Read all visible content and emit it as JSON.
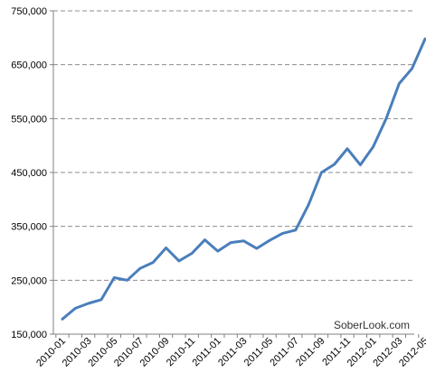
{
  "chart_data": {
    "type": "line",
    "title": "",
    "xlabel": "",
    "ylabel": "",
    "ylim": [
      150000,
      750000
    ],
    "y_ticks": [
      "150,000",
      "250,000",
      "350,000",
      "450,000",
      "550,000",
      "650,000",
      "750,000"
    ],
    "y_tick_values": [
      150000,
      250000,
      350000,
      450000,
      550000,
      650000,
      750000
    ],
    "x_tick_labels": [
      "2010-01",
      "2010-03",
      "2010-05",
      "2010-07",
      "2010-09",
      "2010-11",
      "2011-01",
      "2011-03",
      "2011-05",
      "2011-07",
      "2011-09",
      "2011-11",
      "2012-01",
      "2012-03",
      "2012-05"
    ],
    "grid": "horizontal dashed",
    "legend": "none",
    "series": [
      {
        "color": "#4A7EBB",
        "x": [
          "2010-01",
          "2010-02",
          "2010-03",
          "2010-04",
          "2010-05",
          "2010-06",
          "2010-07",
          "2010-08",
          "2010-09",
          "2010-10",
          "2010-11",
          "2010-12",
          "2011-01",
          "2011-02",
          "2011-03",
          "2011-04",
          "2011-05",
          "2011-06",
          "2011-07",
          "2011-08",
          "2011-09",
          "2011-10",
          "2011-11",
          "2011-12",
          "2012-01",
          "2012-02",
          "2012-03",
          "2012-04",
          "2012-05"
        ],
        "values": [
          178000,
          198000,
          207000,
          214000,
          255000,
          250000,
          272000,
          283000,
          310000,
          286000,
          300000,
          325000,
          304000,
          320000,
          323000,
          309000,
          324000,
          337000,
          343000,
          390000,
          450000,
          465000,
          494000,
          464000,
          498000,
          550000,
          615000,
          643000,
          698000
        ]
      }
    ]
  },
  "watermark": "SoberLook.com"
}
